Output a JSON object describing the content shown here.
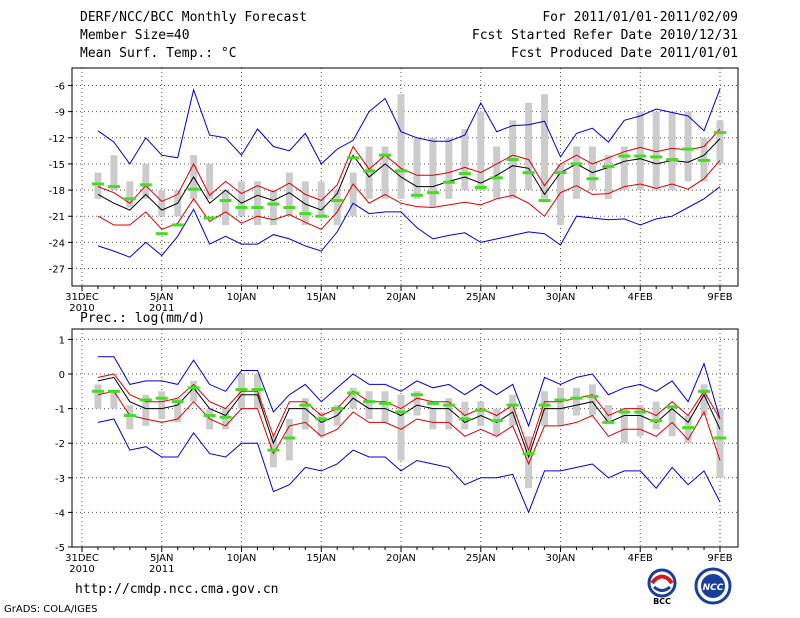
{
  "header": {
    "title": "DERF/NCC/BCC Monthly Forecast",
    "member_size": "Member Size=40",
    "top_variable": "Mean Surf. Temp.: °C",
    "period": "For 2011/01/01-2011/02/09",
    "fcst_started": "Fcst Started Refer Date 2010/12/31",
    "fcst_produced": "Fcst Produced Date 2011/01/01"
  },
  "footer": {
    "url": "http://cmdp.ncc.cma.gov.cn",
    "credit": "GrADS: COLA/IGES",
    "logo_left_text": "BCC",
    "logo_right_text": "NCC"
  },
  "colors": {
    "box": "#cccccc",
    "median": "#44dd22",
    "mean": "#000000",
    "spread": "#dd0000",
    "envelope": "#0000cc",
    "grid": "#555555"
  },
  "chart_data": [
    {
      "type": "box-ensemble",
      "title": "Mean Surf. Temp.: °C",
      "x_tick_labels": [
        "31DEC",
        "5JAN",
        "10JAN",
        "15JAN",
        "20JAN",
        "25JAN",
        "30JAN",
        "4FEB",
        "9FEB"
      ],
      "x_tick_days": [
        0,
        5,
        10,
        15,
        20,
        25,
        30,
        35,
        40
      ],
      "x_sublabels": [
        {
          "day": 0,
          "text": "2010"
        },
        {
          "day": 5,
          "text": "2011"
        }
      ],
      "ylim": [
        -29,
        -4
      ],
      "y_ticks": [
        -27,
        -24,
        -21,
        -18,
        -15,
        -12,
        -9,
        -6
      ],
      "y_tick_labels": [
        "-27",
        "-24",
        "-21",
        "-18",
        "-15",
        "-12",
        "-9",
        "-6"
      ],
      "days": [
        1,
        2,
        3,
        4,
        5,
        6,
        7,
        8,
        9,
        10,
        11,
        12,
        13,
        14,
        15,
        16,
        17,
        18,
        19,
        20,
        21,
        22,
        23,
        24,
        25,
        26,
        27,
        28,
        29,
        30,
        31,
        32,
        33,
        34,
        35,
        36,
        37,
        38,
        39,
        40
      ],
      "box_low": [
        -19,
        -18,
        -20,
        -19,
        -21,
        -21,
        -19,
        -19,
        -22,
        -21,
        -22,
        -22,
        -21,
        -22,
        -21,
        -22,
        -21,
        -19,
        -19,
        -19,
        -19,
        -20,
        -19,
        -18,
        -18,
        -19,
        -19,
        -18,
        -19,
        -22,
        -19,
        -18,
        -19,
        -18,
        -18,
        -18,
        -18,
        -17,
        -17,
        -15
      ],
      "box_high": [
        -16,
        -14,
        -17,
        -15,
        -18,
        -18,
        -14,
        -15,
        -18,
        -17,
        -17,
        -18,
        -16,
        -17,
        -17,
        -18,
        -16,
        -13,
        -13,
        -7,
        -12,
        -12,
        -12,
        -11,
        -9,
        -13,
        -10,
        -8,
        -7,
        -15,
        -13,
        -13,
        -14,
        -13,
        -9,
        -9,
        -9,
        -9,
        -12,
        -10
      ],
      "median": [
        -17.3,
        -17.6,
        -19.0,
        -17.4,
        -23.0,
        -22.0,
        -17.9,
        -21.2,
        -19.2,
        -20.0,
        -20.0,
        -19.6,
        -20.0,
        -20.7,
        -21.0,
        -19.2,
        -14.3,
        -15.8,
        -14.0,
        -15.8,
        -18.6,
        -18.3,
        -17.1,
        -16.1,
        -17.7,
        -16.6,
        -14.5,
        -16.0,
        -19.2,
        -16.0,
        -15.0,
        -16.7,
        -15.3,
        -14.1,
        -14.1,
        -14.2,
        -14.5,
        -13.3,
        -14.6,
        -11.4
      ],
      "mean": [
        -18.5,
        -19.5,
        -20.3,
        -18.5,
        -20.3,
        -19.5,
        -16.5,
        -19.5,
        -18.0,
        -19.5,
        -18.6,
        -19.2,
        -18.3,
        -19.6,
        -20.3,
        -18.4,
        -14.0,
        -16.5,
        -15.0,
        -16.5,
        -17.6,
        -17.6,
        -17.0,
        -16.5,
        -17.2,
        -16.3,
        -15.2,
        -15.5,
        -18.5,
        -16.0,
        -15.0,
        -16.0,
        -15.4,
        -14.7,
        -14.4,
        -15.0,
        -14.6,
        -14.8,
        -14.0,
        -12.1
      ],
      "spread_high": [
        -17.6,
        -18.3,
        -19.5,
        -17.5,
        -19.3,
        -18.5,
        -15.0,
        -18.6,
        -17.0,
        -18.4,
        -17.5,
        -18.2,
        -17.2,
        -18.5,
        -19.2,
        -17.4,
        -13.0,
        -15.6,
        -14.0,
        -15.5,
        -16.3,
        -16.3,
        -16.0,
        -15.4,
        -16.0,
        -15.0,
        -14.0,
        -14.5,
        -17.5,
        -15.0,
        -14.0,
        -15.0,
        -14.3,
        -13.6,
        -13.1,
        -13.6,
        -13.2,
        -13.4,
        -13.0,
        -11.0
      ],
      "spread_low": [
        -21.0,
        -22.0,
        -22.0,
        -20.5,
        -22.5,
        -21.8,
        -19.0,
        -21.6,
        -20.5,
        -21.8,
        -21.0,
        -21.4,
        -20.8,
        -21.7,
        -22.5,
        -20.5,
        -17.3,
        -19.5,
        -18.5,
        -19.5,
        -19.9,
        -20.0,
        -19.7,
        -19.4,
        -19.7,
        -19.0,
        -18.6,
        -19.5,
        -21.0,
        -18.3,
        -17.5,
        -18.5,
        -18.4,
        -17.6,
        -17.3,
        -17.8,
        -17.3,
        -17.9,
        -16.7,
        -14.6
      ],
      "env_high": [
        -11.2,
        -12.5,
        -15.0,
        -12.0,
        -14.0,
        -14.3,
        -6.5,
        -11.7,
        -12.0,
        -14.0,
        -11.0,
        -13.0,
        -13.5,
        -11.5,
        -15.0,
        -13.3,
        -12.3,
        -9.0,
        -7.5,
        -11.3,
        -12.0,
        -12.4,
        -12.4,
        -11.7,
        -8.0,
        -11.3,
        -10.6,
        -10.5,
        -10.1,
        -14.2,
        -11.5,
        -10.9,
        -12.5,
        -10.0,
        -9.5,
        -8.7,
        -9.1,
        -9.5,
        -11.2,
        -6.4
      ],
      "env_low": [
        -24.4,
        -25.0,
        -25.7,
        -24.0,
        -25.5,
        -23.3,
        -20.2,
        -24.2,
        -23.3,
        -24.2,
        -24.2,
        -23.1,
        -23.6,
        -24.4,
        -25.0,
        -22.8,
        -19.5,
        -20.7,
        -20.5,
        -20.5,
        -22.3,
        -23.6,
        -23.2,
        -22.9,
        -24.0,
        -23.6,
        -23.2,
        -22.8,
        -23.0,
        -24.3,
        -21.0,
        -21.2,
        -21.4,
        -21.3,
        -22.0,
        -21.3,
        -21.0,
        -20.0,
        -19.0,
        -17.6
      ]
    },
    {
      "type": "box-ensemble",
      "title": "Prec.: log(mm/d)",
      "x_tick_labels": [
        "31DEC",
        "5JAN",
        "10JAN",
        "15JAN",
        "20JAN",
        "25JAN",
        "30JAN",
        "4FEB",
        "9FEB"
      ],
      "x_tick_days": [
        0,
        5,
        10,
        15,
        20,
        25,
        30,
        35,
        40
      ],
      "x_sublabels": [
        {
          "day": 0,
          "text": "2010"
        },
        {
          "day": 5,
          "text": "2011"
        }
      ],
      "ylim": [
        -5,
        1.3
      ],
      "y_ticks": [
        -5,
        -4,
        -3,
        -2,
        -1,
        0,
        1
      ],
      "y_tick_labels": [
        "-5",
        "-4",
        "-3",
        "-2",
        "-1",
        "0",
        "1"
      ],
      "days": [
        1,
        2,
        3,
        4,
        5,
        6,
        7,
        8,
        9,
        10,
        11,
        12,
        13,
        14,
        15,
        16,
        17,
        18,
        19,
        20,
        21,
        22,
        23,
        24,
        25,
        26,
        27,
        28,
        29,
        30,
        31,
        32,
        33,
        34,
        35,
        36,
        37,
        38,
        39,
        40
      ],
      "box_low": [
        -1.0,
        -1.0,
        -1.6,
        -1.5,
        -1.3,
        -1.4,
        -0.8,
        -1.6,
        -1.6,
        -1.0,
        -1.0,
        -2.7,
        -2.5,
        -1.6,
        -1.8,
        -1.5,
        -1.0,
        -1.3,
        -1.4,
        -2.5,
        -1.2,
        -1.6,
        -1.6,
        -1.6,
        -1.5,
        -1.8,
        -1.5,
        -3.3,
        -1.5,
        -1.5,
        -1.2,
        -1.2,
        -1.4,
        -2.0,
        -1.8,
        -1.6,
        -1.8,
        -2.0,
        -1.2,
        -3.0
      ],
      "box_high": [
        -0.3,
        -0.5,
        -0.9,
        -0.6,
        -0.5,
        -0.7,
        -0.2,
        -1.0,
        -1.0,
        0.0,
        0.0,
        -1.8,
        -1.3,
        -0.7,
        -1.1,
        -0.9,
        -0.4,
        -0.5,
        -0.5,
        -0.6,
        -0.5,
        -1.0,
        -0.7,
        -0.8,
        -0.8,
        -1.0,
        -0.6,
        -1.8,
        -0.5,
        -0.4,
        -0.4,
        -0.3,
        -0.9,
        -1.0,
        -0.9,
        -0.8,
        -0.9,
        -1.2,
        -0.3,
        -1.0
      ],
      "median": [
        -0.5,
        -0.5,
        -1.2,
        -0.75,
        -0.7,
        -0.8,
        -0.4,
        -1.2,
        -1.25,
        -0.45,
        -0.45,
        -2.2,
        -1.85,
        -0.9,
        -1.3,
        -1.0,
        -0.55,
        -0.8,
        -0.85,
        -1.1,
        -0.6,
        -0.85,
        -0.9,
        -1.3,
        -1.05,
        -1.35,
        -0.9,
        -2.3,
        -0.9,
        -0.75,
        -0.7,
        -0.65,
        -1.4,
        -1.1,
        -1.1,
        -1.35,
        -0.95,
        -1.55,
        -0.5,
        -1.85
      ],
      "mean": [
        -0.2,
        -0.1,
        -0.8,
        -1.0,
        -1.0,
        -0.9,
        -0.4,
        -1.0,
        -1.2,
        -0.6,
        -0.6,
        -2.0,
        -1.0,
        -1.0,
        -1.4,
        -1.2,
        -0.7,
        -1.0,
        -1.0,
        -1.2,
        -0.9,
        -1.0,
        -1.0,
        -1.4,
        -1.2,
        -1.4,
        -1.1,
        -2.4,
        -1.0,
        -1.0,
        -0.9,
        -0.8,
        -1.4,
        -1.2,
        -1.2,
        -1.4,
        -1.0,
        -1.4,
        -0.6,
        -1.6
      ],
      "spread_high": [
        -0.1,
        0.0,
        -0.6,
        -0.8,
        -0.8,
        -0.7,
        -0.3,
        -0.8,
        -1.0,
        -0.5,
        -0.5,
        -1.8,
        -0.8,
        -0.8,
        -1.2,
        -1.0,
        -0.5,
        -0.8,
        -0.8,
        -1.0,
        -0.7,
        -0.8,
        -0.8,
        -1.2,
        -1.0,
        -1.2,
        -0.9,
        -2.2,
        -0.8,
        -0.8,
        -0.7,
        -0.6,
        -1.2,
        -1.0,
        -1.0,
        -1.2,
        -0.8,
        -1.2,
        -0.5,
        -1.3
      ],
      "spread_low": [
        -0.6,
        -0.5,
        -1.2,
        -1.3,
        -1.4,
        -1.3,
        -0.8,
        -1.3,
        -1.5,
        -1.0,
        -1.0,
        -2.3,
        -1.5,
        -1.4,
        -1.8,
        -1.6,
        -1.1,
        -1.4,
        -1.4,
        -1.6,
        -1.3,
        -1.4,
        -1.4,
        -1.8,
        -1.6,
        -1.8,
        -1.5,
        -2.6,
        -1.5,
        -1.5,
        -1.4,
        -1.2,
        -1.8,
        -1.6,
        -1.6,
        -1.8,
        -1.4,
        -1.9,
        -1.1,
        -2.5
      ],
      "env_high": [
        0.5,
        0.5,
        -0.3,
        -0.2,
        -0.2,
        -0.3,
        0.4,
        -0.3,
        -0.5,
        0.1,
        0.1,
        -1.1,
        -0.6,
        -0.3,
        -0.8,
        -0.4,
        0.0,
        -0.3,
        -0.3,
        -0.5,
        -0.2,
        -0.4,
        -0.3,
        -0.6,
        -0.3,
        -0.6,
        -0.3,
        -1.5,
        -0.1,
        -0.3,
        -0.1,
        0.0,
        -0.6,
        -0.4,
        -0.3,
        -0.5,
        -0.2,
        -0.8,
        0.3,
        -1.3
      ],
      "env_low": [
        -1.4,
        -1.3,
        -2.2,
        -2.1,
        -2.4,
        -2.4,
        -1.7,
        -2.3,
        -2.4,
        -2.0,
        -2.0,
        -3.4,
        -3.2,
        -2.7,
        -2.8,
        -2.6,
        -2.2,
        -2.4,
        -2.4,
        -2.8,
        -2.5,
        -2.6,
        -2.7,
        -3.2,
        -3.0,
        -3.0,
        -2.9,
        -4.0,
        -2.8,
        -2.8,
        -2.7,
        -2.6,
        -3.0,
        -2.8,
        -2.8,
        -3.3,
        -2.7,
        -3.2,
        -2.8,
        -3.7
      ]
    }
  ]
}
